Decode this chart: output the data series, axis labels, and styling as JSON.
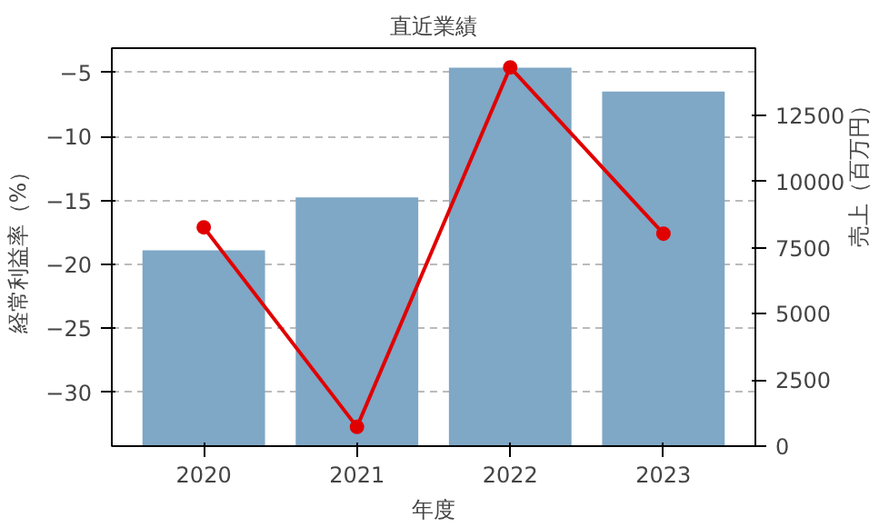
{
  "chart_data": {
    "type": "bar",
    "title": "直近業績",
    "xlabel": "年度",
    "ylabel": "経常利益率（%）",
    "y2label": "売上（百万円）",
    "categories": [
      "2020",
      "2021",
      "2022",
      "2023"
    ],
    "series": [
      {
        "axis": "y2",
        "color": "#7fa7c6",
        "values": [
          7400,
          9400,
          14300,
          13400
        ]
      },
      {
        "type": "line",
        "axis": "y",
        "color": "#e00000",
        "values": [
          -17.1,
          -32.7,
          -4.6,
          -17.6
        ],
        "marker": "circle"
      }
    ],
    "ylim": [
      -34.2,
      -3.1
    ],
    "yticks": [
      -30,
      -25,
      -20,
      -15,
      -10,
      -5
    ],
    "y2lim": [
      0,
      15040
    ],
    "y2ticks": [
      0,
      2500,
      5000,
      7500,
      10000,
      12500
    ],
    "grid": "y"
  }
}
